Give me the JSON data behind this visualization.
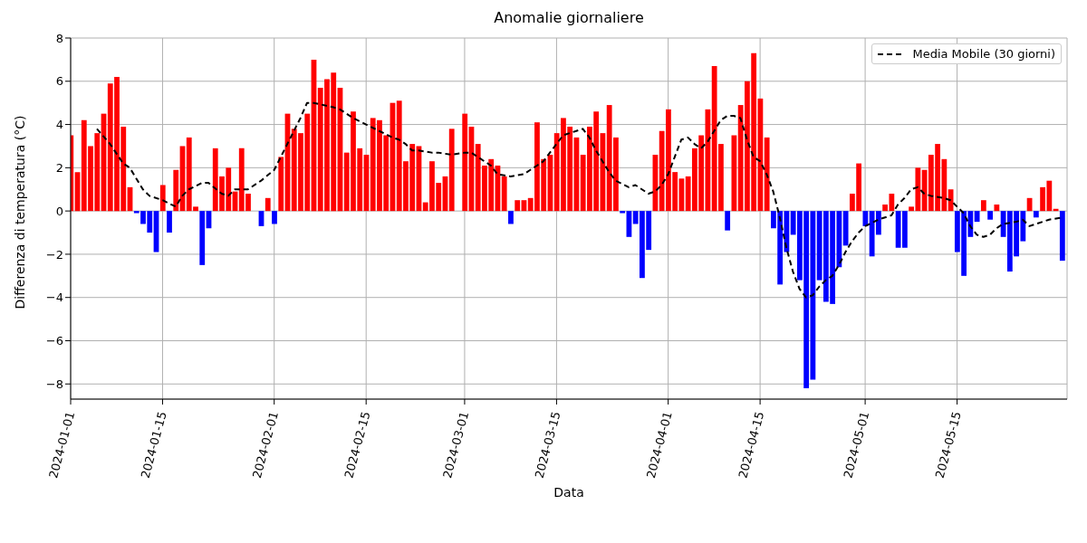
{
  "chart_data": {
    "type": "bar",
    "title": "Anomalie giornaliere",
    "xlabel": "Data",
    "ylabel": "Differenza di temperatura (°C)",
    "x": [
      "2024-01-01",
      "2024-01-02",
      "2024-01-03",
      "2024-01-04",
      "2024-01-05",
      "2024-01-06",
      "2024-01-07",
      "2024-01-08",
      "2024-01-09",
      "2024-01-10",
      "2024-01-11",
      "2024-01-12",
      "2024-01-13",
      "2024-01-14",
      "2024-01-15",
      "2024-01-16",
      "2024-01-17",
      "2024-01-18",
      "2024-01-19",
      "2024-01-20",
      "2024-01-21",
      "2024-01-22",
      "2024-01-23",
      "2024-01-24",
      "2024-01-25",
      "2024-01-26",
      "2024-01-27",
      "2024-01-28",
      "2024-01-29",
      "2024-01-30",
      "2024-01-31",
      "2024-02-01",
      "2024-02-02",
      "2024-02-03",
      "2024-02-04",
      "2024-02-05",
      "2024-02-06",
      "2024-02-07",
      "2024-02-08",
      "2024-02-09",
      "2024-02-10",
      "2024-02-11",
      "2024-02-12",
      "2024-02-13",
      "2024-02-14",
      "2024-02-15",
      "2024-02-16",
      "2024-02-17",
      "2024-02-18",
      "2024-02-19",
      "2024-02-20",
      "2024-02-21",
      "2024-02-22",
      "2024-02-23",
      "2024-02-24",
      "2024-02-25",
      "2024-02-26",
      "2024-02-27",
      "2024-02-28",
      "2024-02-29",
      "2024-03-01",
      "2024-03-02",
      "2024-03-03",
      "2024-03-04",
      "2024-03-05",
      "2024-03-06",
      "2024-03-07",
      "2024-03-08",
      "2024-03-09",
      "2024-03-10",
      "2024-03-11",
      "2024-03-12",
      "2024-03-13",
      "2024-03-14",
      "2024-03-15",
      "2024-03-16",
      "2024-03-17",
      "2024-03-18",
      "2024-03-19",
      "2024-03-20",
      "2024-03-21",
      "2024-03-22",
      "2024-03-23",
      "2024-03-24",
      "2024-03-25",
      "2024-03-26",
      "2024-03-27",
      "2024-03-28",
      "2024-03-29",
      "2024-03-30",
      "2024-03-31",
      "2024-04-01",
      "2024-04-02",
      "2024-04-03",
      "2024-04-04",
      "2024-04-05",
      "2024-04-06",
      "2024-04-07",
      "2024-04-08",
      "2024-04-09",
      "2024-04-10",
      "2024-04-11",
      "2024-04-12",
      "2024-04-13",
      "2024-04-14",
      "2024-04-15",
      "2024-04-16",
      "2024-04-17",
      "2024-04-18",
      "2024-04-19",
      "2024-04-20",
      "2024-04-21",
      "2024-04-22",
      "2024-04-23",
      "2024-04-24",
      "2024-04-25",
      "2024-04-26",
      "2024-04-27",
      "2024-04-28",
      "2024-04-29",
      "2024-04-30",
      "2024-05-01",
      "2024-05-02",
      "2024-05-03",
      "2024-05-04",
      "2024-05-05",
      "2024-05-06",
      "2024-05-07",
      "2024-05-08",
      "2024-05-09",
      "2024-05-10",
      "2024-05-11",
      "2024-05-12",
      "2024-05-13",
      "2024-05-14",
      "2024-05-15",
      "2024-05-16",
      "2024-05-17",
      "2024-05-18",
      "2024-05-19",
      "2024-05-20",
      "2024-05-21",
      "2024-05-22",
      "2024-05-23",
      "2024-05-24",
      "2024-05-25",
      "2024-05-26",
      "2024-05-27",
      "2024-05-28",
      "2024-05-29",
      "2024-05-30",
      "2024-05-31"
    ],
    "series": [
      {
        "values": [
          3.5,
          1.8,
          4.2,
          3.0,
          3.6,
          4.5,
          5.9,
          6.2,
          3.9,
          1.1,
          -0.1,
          -0.6,
          -1.0,
          -1.9,
          1.2,
          -1.0,
          1.9,
          3.0,
          3.4,
          0.2,
          -2.5,
          -0.8,
          2.9,
          1.6,
          2.0,
          0.9,
          2.9,
          0.8,
          0,
          -0.7,
          0.6,
          -0.6,
          2.5,
          4.5,
          3.8,
          3.6,
          4.5,
          7.0,
          5.7,
          6.1,
          6.4,
          5.7,
          2.7,
          4.6,
          2.9,
          2.6,
          4.3,
          4.2,
          3.5,
          5.0,
          5.1,
          2.3,
          3.1,
          3.0,
          0.4,
          2.3,
          1.3,
          1.6,
          3.8,
          0,
          4.5,
          3.9,
          3.1,
          2.1,
          2.4,
          2.1,
          1.6,
          -0.6,
          0.5,
          0.5,
          0.6,
          4.1,
          2.4,
          2.6,
          3.6,
          4.3,
          3.9,
          3.4,
          2.6,
          3.9,
          4.6,
          3.6,
          4.9,
          3.4,
          -0.1,
          -1.2,
          -0.6,
          -3.1,
          -1.8,
          2.6,
          3.7,
          4.7,
          1.8,
          1.5,
          1.6,
          2.9,
          3.5,
          4.7,
          6.7,
          3.1,
          -0.9,
          3.5,
          4.9,
          6.0,
          7.3,
          5.2,
          3.4,
          -0.8,
          -3.4,
          -1.9,
          -1.1,
          -3.2,
          -8.2,
          -7.8,
          -3.2,
          -4.2,
          -4.3,
          -2.6,
          -1.6,
          0.8,
          2.2,
          -0.7,
          -2.1,
          -1.1,
          0.3,
          0.8,
          -1.7,
          -1.7,
          0.2,
          2.0,
          1.9,
          2.6,
          3.1,
          2.4,
          1.0,
          -1.9,
          -3.0,
          -1.2,
          -0.5,
          0.5,
          -0.4,
          0.3,
          -1.2,
          -2.8,
          -2.1,
          -1.4,
          0.6,
          -0.3,
          1.1,
          1.4,
          0.1,
          -2.3
        ],
        "colors": [
          "#ff0000",
          "#ff0000",
          "#ff0000",
          "#ff0000",
          "#ff0000",
          "#ff0000",
          "#ff0000",
          "#ff0000",
          "#ff0000",
          "#ff0000",
          "#0000ff",
          "#0000ff",
          "#0000ff",
          "#0000ff",
          "#ff0000",
          "#0000ff",
          "#ff0000",
          "#ff0000",
          "#ff0000",
          "#ff0000",
          "#0000ff",
          "#0000ff",
          "#ff0000",
          "#ff0000",
          "#ff0000",
          "#ff0000",
          "#ff0000",
          "#ff0000",
          "#ff0000",
          "#0000ff",
          "#ff0000",
          "#0000ff",
          "#ff0000",
          "#ff0000",
          "#ff0000",
          "#ff0000",
          "#ff0000",
          "#ff0000",
          "#ff0000",
          "#ff0000",
          "#ff0000",
          "#ff0000",
          "#ff0000",
          "#ff0000",
          "#ff0000",
          "#ff0000",
          "#ff0000",
          "#ff0000",
          "#ff0000",
          "#ff0000",
          "#ff0000",
          "#ff0000",
          "#ff0000",
          "#ff0000",
          "#ff0000",
          "#ff0000",
          "#ff0000",
          "#ff0000",
          "#ff0000",
          "#ff0000",
          "#ff0000",
          "#ff0000",
          "#ff0000",
          "#ff0000",
          "#ff0000",
          "#ff0000",
          "#ff0000",
          "#0000ff",
          "#ff0000",
          "#ff0000",
          "#ff0000",
          "#ff0000",
          "#ff0000",
          "#ff0000",
          "#ff0000",
          "#ff0000",
          "#ff0000",
          "#ff0000",
          "#ff0000",
          "#ff0000",
          "#ff0000",
          "#ff0000",
          "#ff0000",
          "#ff0000",
          "#0000ff",
          "#0000ff",
          "#0000ff",
          "#0000ff",
          "#0000ff",
          "#ff0000",
          "#ff0000",
          "#ff0000",
          "#ff0000",
          "#ff0000",
          "#ff0000",
          "#ff0000",
          "#ff0000",
          "#ff0000",
          "#ff0000",
          "#ff0000",
          "#0000ff",
          "#ff0000",
          "#ff0000",
          "#ff0000",
          "#ff0000",
          "#ff0000",
          "#ff0000",
          "#0000ff",
          "#0000ff",
          "#0000ff",
          "#0000ff",
          "#0000ff",
          "#0000ff",
          "#0000ff",
          "#0000ff",
          "#0000ff",
          "#0000ff",
          "#0000ff",
          "#0000ff",
          "#ff0000",
          "#ff0000",
          "#0000ff",
          "#0000ff",
          "#0000ff",
          "#ff0000",
          "#ff0000",
          "#0000ff",
          "#0000ff",
          "#ff0000",
          "#ff0000",
          "#ff0000",
          "#ff0000",
          "#ff0000",
          "#ff0000",
          "#ff0000",
          "#0000ff",
          "#0000ff",
          "#0000ff",
          "#0000ff",
          "#ff0000",
          "#0000ff",
          "#ff0000",
          "#0000ff",
          "#0000ff",
          "#0000ff",
          "#0000ff",
          "#ff0000",
          "#0000ff",
          "#ff0000",
          "#ff0000",
          "#ff0000",
          "#0000ff"
        ]
      },
      {
        "type": "line",
        "name": "Media Mobile (30 giorni)",
        "color": "#000000",
        "line_style": "dashed",
        "marker": "none",
        "x": [
          "2024-01-05",
          "2024-01-07",
          "2024-01-09",
          "2024-01-10",
          "2024-01-12",
          "2024-01-13",
          "2024-01-15",
          "2024-01-17",
          "2024-01-18",
          "2024-01-19",
          "2024-01-21",
          "2024-01-22",
          "2024-01-24",
          "2024-01-25",
          "2024-01-26",
          "2024-01-28",
          "2024-01-30",
          "2024-02-01",
          "2024-02-02",
          "2024-02-03",
          "2024-02-04",
          "2024-02-05",
          "2024-02-06",
          "2024-02-07",
          "2024-02-10",
          "2024-02-11",
          "2024-02-13",
          "2024-02-15",
          "2024-02-17",
          "2024-02-19",
          "2024-02-20",
          "2024-02-21",
          "2024-02-22",
          "2024-02-23",
          "2024-02-25",
          "2024-02-26",
          "2024-02-28",
          "2024-03-01",
          "2024-03-02",
          "2024-03-04",
          "2024-03-05",
          "2024-03-06",
          "2024-03-08",
          "2024-03-10",
          "2024-03-12",
          "2024-03-13",
          "2024-03-15",
          "2024-03-16",
          "2024-03-18",
          "2024-03-19",
          "2024-03-20",
          "2024-03-21",
          "2024-03-22",
          "2024-03-23",
          "2024-03-24",
          "2024-03-26",
          "2024-03-27",
          "2024-03-29",
          "2024-03-30",
          "2024-03-31",
          "2024-04-01",
          "2024-04-02",
          "2024-04-03",
          "2024-04-04",
          "2024-04-05",
          "2024-04-06",
          "2024-04-07",
          "2024-04-08",
          "2024-04-09",
          "2024-04-10",
          "2024-04-11",
          "2024-04-12",
          "2024-04-13",
          "2024-04-14",
          "2024-04-15",
          "2024-04-16",
          "2024-04-17",
          "2024-04-18",
          "2024-04-19",
          "2024-04-20",
          "2024-04-21",
          "2024-04-22",
          "2024-04-23",
          "2024-04-24",
          "2024-04-25",
          "2024-04-26",
          "2024-04-27",
          "2024-04-28",
          "2024-04-29",
          "2024-04-30",
          "2024-05-01",
          "2024-05-03",
          "2024-05-05",
          "2024-05-06",
          "2024-05-07",
          "2024-05-08",
          "2024-05-09",
          "2024-05-10",
          "2024-05-11",
          "2024-05-13",
          "2024-05-14",
          "2024-05-15",
          "2024-05-16",
          "2024-05-17",
          "2024-05-18",
          "2024-05-19",
          "2024-05-20",
          "2024-05-21",
          "2024-05-22",
          "2024-05-24",
          "2024-05-25",
          "2024-05-26",
          "2024-05-27",
          "2024-05-29",
          "2024-05-31"
        ],
        "values": [
          3.8,
          3.1,
          2.2,
          2.0,
          1.0,
          0.7,
          0.5,
          0.2,
          0.7,
          1.0,
          1.3,
          1.3,
          0.8,
          0.7,
          1.0,
          1.0,
          1.4,
          1.9,
          2.5,
          3.1,
          3.7,
          4.3,
          5.0,
          5.0,
          4.8,
          4.7,
          4.3,
          4.0,
          3.7,
          3.4,
          3.3,
          3.1,
          2.8,
          2.8,
          2.7,
          2.7,
          2.6,
          2.7,
          2.7,
          2.3,
          2.1,
          1.7,
          1.6,
          1.7,
          2.1,
          2.3,
          3.1,
          3.5,
          3.7,
          3.8,
          3.4,
          2.8,
          2.3,
          1.8,
          1.4,
          1.1,
          1.2,
          0.8,
          0.9,
          1.2,
          1.7,
          2.5,
          3.3,
          3.4,
          3.1,
          2.9,
          3.2,
          3.7,
          4.2,
          4.4,
          4.4,
          4.3,
          3.3,
          2.5,
          2.3,
          1.7,
          0.9,
          -0.3,
          -1.7,
          -2.8,
          -3.6,
          -4.0,
          -3.9,
          -3.5,
          -3.2,
          -3.0,
          -2.5,
          -1.9,
          -1.4,
          -1.0,
          -0.7,
          -0.4,
          -0.2,
          0.3,
          0.6,
          1.0,
          1.1,
          0.8,
          0.7,
          0.6,
          0.5,
          0.2,
          -0.1,
          -0.7,
          -1.1,
          -1.2,
          -1.1,
          -0.8,
          -0.6,
          -0.5,
          -0.4,
          -0.7,
          -0.6,
          -0.4,
          -0.3
        ]
      }
    ],
    "xlim": [
      "2024-01-01",
      "2024-05-31T18:00"
    ],
    "xticks": [
      "2024-01-01",
      "2024-01-15",
      "2024-02-01",
      "2024-02-15",
      "2024-03-01",
      "2024-03-15",
      "2024-04-01",
      "2024-04-15",
      "2024-05-01",
      "2024-05-15"
    ],
    "ylim": [
      -8.7,
      8
    ],
    "yticks": [
      {
        "value": -8,
        "label": "−8"
      },
      {
        "value": -6,
        "label": "−6"
      },
      {
        "value": -4,
        "label": "−4"
      },
      {
        "value": -2,
        "label": "−2"
      },
      0,
      2,
      4,
      6,
      8
    ],
    "grid": true,
    "legend": "top right"
  }
}
